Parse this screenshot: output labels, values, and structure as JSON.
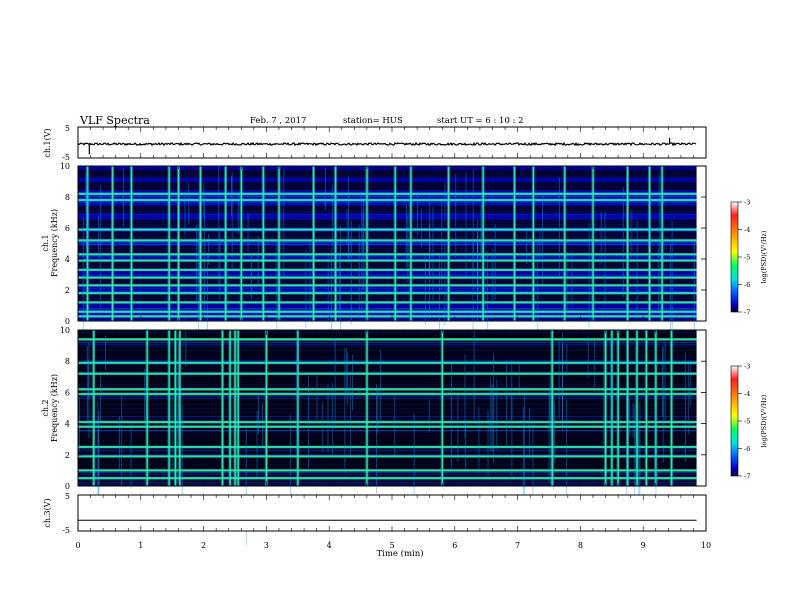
{
  "header": {
    "title": "VLF Spectra",
    "date": "Feb. 7 , 2017",
    "station": "station= HUS",
    "start": "start UT = 6 : 10 : 2"
  },
  "chart_data": [
    {
      "type": "line",
      "id": "ch1-voltage",
      "ylabel": "ch.1(V)",
      "ylim": [
        -5,
        5
      ],
      "xlim": [
        0,
        9.85
      ],
      "yticks": [
        "5",
        "-5"
      ],
      "trace_level": -0.5,
      "trace_noise": 0.35,
      "spikes": [
        {
          "x": 0.18,
          "y": -3.8
        },
        {
          "x": 9.42,
          "y": 1.5
        }
      ]
    },
    {
      "type": "heatmap",
      "id": "ch1-spectrogram",
      "ylabel_top": "ch.1",
      "ylabel": "Frequency (kHz)",
      "ylim": [
        0,
        10
      ],
      "xlim": [
        0,
        9.85
      ],
      "yticks": [
        "0",
        "2",
        "4",
        "6",
        "8",
        "10"
      ],
      "colorbar": {
        "label": "log(PSD)(V²/Hz)",
        "range": [
          -7,
          -3
        ],
        "ticks": [
          "-3",
          "-4",
          "-5",
          "-6",
          "-7"
        ]
      },
      "bright_bands_khz": [
        0.3,
        0.6,
        1.2,
        1.8,
        2.3,
        2.8,
        3.3,
        3.9,
        4.3,
        5.2,
        5.9,
        7.8,
        8.2
      ],
      "dark_bands_khz": [
        1.5,
        2.6,
        3.6,
        4.6,
        5.5,
        6.3,
        7.2,
        8.7,
        9.5
      ],
      "bursts_min": [
        0.15,
        0.55,
        0.85,
        1.45,
        1.6,
        1.95,
        2.35,
        2.6,
        2.95,
        3.2,
        3.75,
        4.1,
        4.6,
        5.05,
        5.3,
        5.9,
        6.45,
        6.95,
        7.25,
        7.75,
        8.2,
        8.75,
        9.1,
        9.3
      ]
    },
    {
      "type": "heatmap",
      "id": "ch2-spectrogram",
      "ylabel_top": "ch.2",
      "ylabel": "Frequency (kHz)",
      "ylim": [
        0,
        10
      ],
      "xlim": [
        0,
        9.85
      ],
      "yticks": [
        "0",
        "2",
        "4",
        "6",
        "8",
        "10"
      ],
      "colorbar": {
        "label": "log(PSD)(V²/Hz)",
        "range": [
          -7,
          -3
        ],
        "ticks": [
          "-3",
          "-4",
          "-5",
          "-6",
          "-7"
        ]
      },
      "bright_bands_khz": [
        0.5,
        1.0,
        1.9,
        2.5,
        3.8,
        4.1,
        5.9,
        6.2,
        7.2,
        7.9,
        9.4
      ],
      "dark_bands_khz": [
        1.4,
        3.0,
        4.8,
        5.3,
        6.7,
        8.6,
        9.6
      ],
      "bursts_min": [
        0.25,
        1.1,
        1.45,
        1.55,
        1.62,
        2.3,
        2.42,
        2.5,
        2.55,
        3.0,
        3.5,
        4.6,
        5.8,
        7.55,
        8.4,
        8.5,
        8.6,
        8.75,
        8.9,
        9.05,
        9.2,
        9.45
      ]
    },
    {
      "type": "line",
      "id": "ch3-voltage",
      "ylabel": "ch.3(V)",
      "ylim": [
        -5,
        5
      ],
      "xlim": [
        0,
        9.85
      ],
      "yticks": [
        "5",
        "-5"
      ],
      "trace_level": -2.0
    }
  ],
  "xaxis": {
    "label": "Time (min)",
    "range": [
      0,
      10
    ],
    "ticks": [
      "0",
      "1",
      "2",
      "3",
      "4",
      "5",
      "6",
      "7",
      "8",
      "9",
      "10"
    ]
  }
}
